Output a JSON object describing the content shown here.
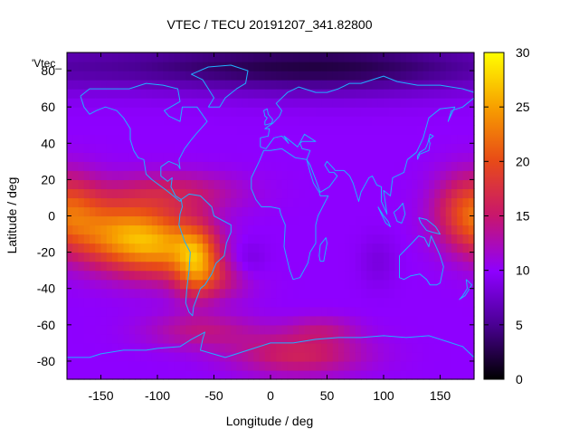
{
  "chart_data": {
    "type": "heatmap",
    "title": "VTEC / TECU 20191207_341.82800",
    "xlabel": "Longitude / deg",
    "ylabel": "Latitude / deg",
    "legend_entry": "'Vtec_",
    "xlim": [
      -180,
      180
    ],
    "ylim": [
      -90,
      90
    ],
    "x_ticks": [
      -150,
      -100,
      -50,
      0,
      50,
      100,
      150
    ],
    "y_ticks": [
      -80,
      -60,
      -40,
      -20,
      0,
      20,
      40,
      60,
      80
    ],
    "colorbar": {
      "range": [
        0,
        30
      ],
      "ticks": [
        0,
        5,
        10,
        15,
        20,
        25,
        30
      ],
      "palette": [
        "#000000",
        "#4b0095",
        "#8e00ff",
        "#c8166d",
        "#e84b17",
        "#f79e00",
        "#ffff00"
      ]
    },
    "grid": false,
    "overlay": "coastlines",
    "coastline_color": "#20b0ff",
    "data_model": {
      "description_units": "TECU",
      "background": 10,
      "features": [
        {
          "lon": -130,
          "lat": -10,
          "slon": 32,
          "slat": 13,
          "amp": 13
        },
        {
          "lon": -90,
          "lat": -18,
          "slon": 28,
          "slat": 12,
          "amp": 9
        },
        {
          "lon": -65,
          "lat": -25,
          "slon": 13,
          "slat": 13,
          "amp": 10
        },
        {
          "lon": -45,
          "lat": -35,
          "slon": 22,
          "slat": 8,
          "amp": 4
        },
        {
          "lon": -85,
          "lat": 13,
          "slon": 40,
          "slat": 8,
          "amp": 5
        },
        {
          "lon": 178,
          "lat": 3,
          "slon": 22,
          "slat": 14,
          "amp": 10
        },
        {
          "lon": -60,
          "lat": -63,
          "slon": 35,
          "slat": 7,
          "amp": 4
        },
        {
          "lon": 25,
          "lat": -76,
          "slon": 40,
          "slat": 8,
          "amp": 6
        },
        {
          "lon": 45,
          "lat": -62,
          "slon": 22,
          "slat": 5,
          "amp": 3
        },
        {
          "lon": 0,
          "lat": 83,
          "slon": 180,
          "slat": 10,
          "amp": -6
        },
        {
          "lon": 60,
          "lat": 80,
          "slon": 80,
          "slat": 12,
          "amp": -2
        },
        {
          "lon": -20,
          "lat": -25,
          "slon": 12,
          "slat": 8,
          "amp": -2
        },
        {
          "lon": 95,
          "lat": -25,
          "slon": 12,
          "slat": 10,
          "amp": -1.5
        }
      ]
    }
  }
}
